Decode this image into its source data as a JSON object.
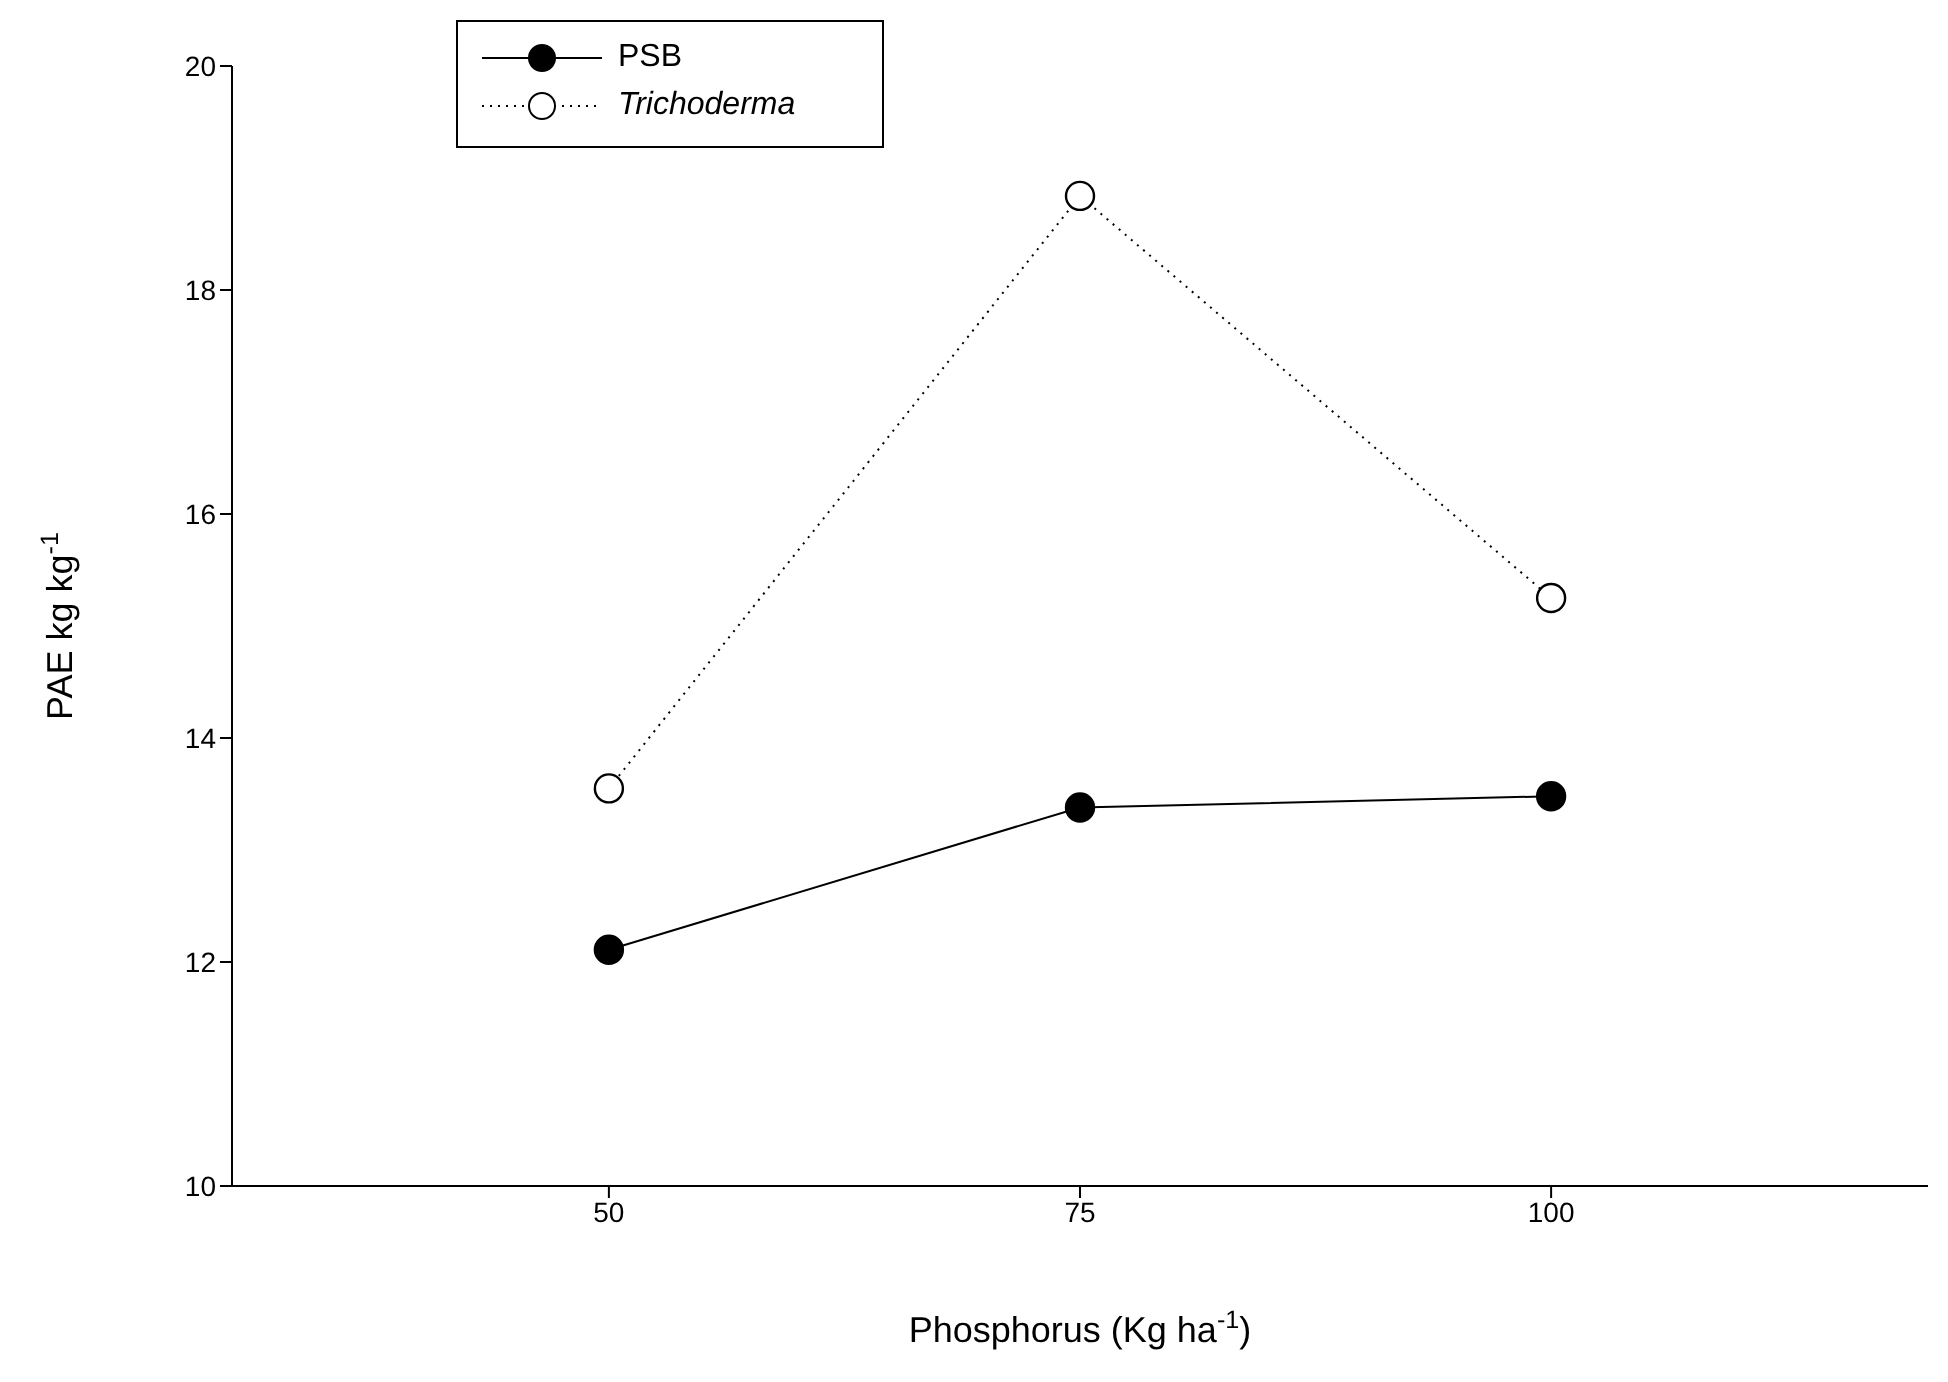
{
  "chart_data": {
    "type": "line",
    "xlabel": "Phosphorus (Kg ha$^{-1}$)",
    "ylabel": "PAE kg kg$^{-1}$",
    "x": [
      50,
      75,
      100
    ],
    "series": [
      {
        "name": "PSB",
        "color": "#000000",
        "values": [
          12.11,
          13.38,
          13.48
        ],
        "line_style": "solid"
      },
      {
        "name": "Trichoderma",
        "color": "#000000",
        "values": [
          13.55,
          18.84,
          15.25
        ],
        "line_style": "dotted"
      }
    ],
    "xlim": [
      30,
      120
    ],
    "xticks": [
      50,
      75,
      100
    ],
    "ylim": [
      10,
      20
    ],
    "yticks": [
      10,
      12,
      14,
      16,
      18,
      20
    ],
    "marker": "circle",
    "grid": false,
    "legend": "top left"
  }
}
